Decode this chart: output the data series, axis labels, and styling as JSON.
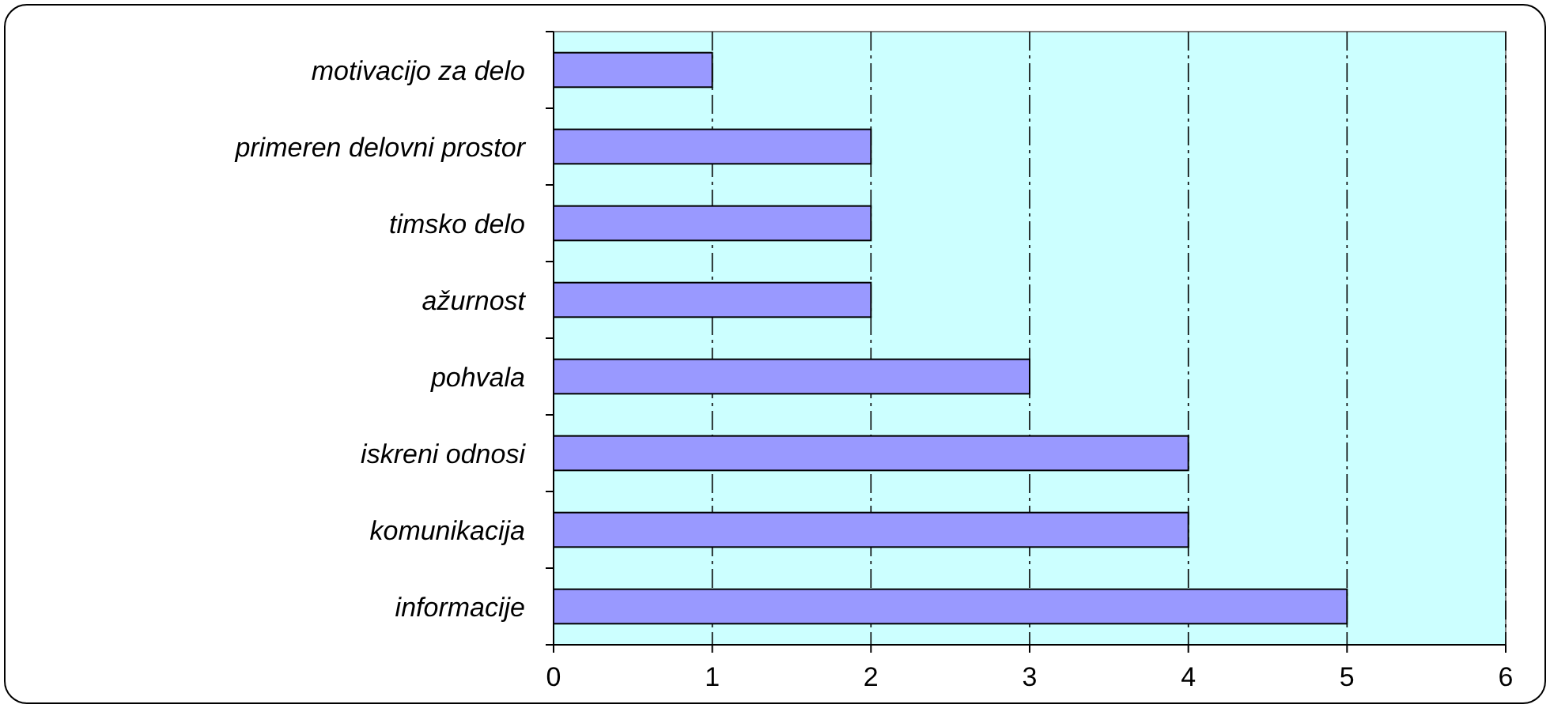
{
  "chart_data": {
    "type": "bar",
    "orientation": "horizontal",
    "categories": [
      "motivacijo za delo",
      "primeren delovni prostor",
      "timsko delo",
      "ažurnost",
      "pohvala",
      "iskreni odnosi",
      "komunikacija",
      "informacije"
    ],
    "values": [
      1,
      2,
      2,
      2,
      3,
      4,
      4,
      5
    ],
    "color": "#9999ff",
    "xlim": [
      0,
      6
    ],
    "xticks": [
      0,
      1,
      2,
      3,
      4,
      5,
      6
    ],
    "grid": "x"
  }
}
